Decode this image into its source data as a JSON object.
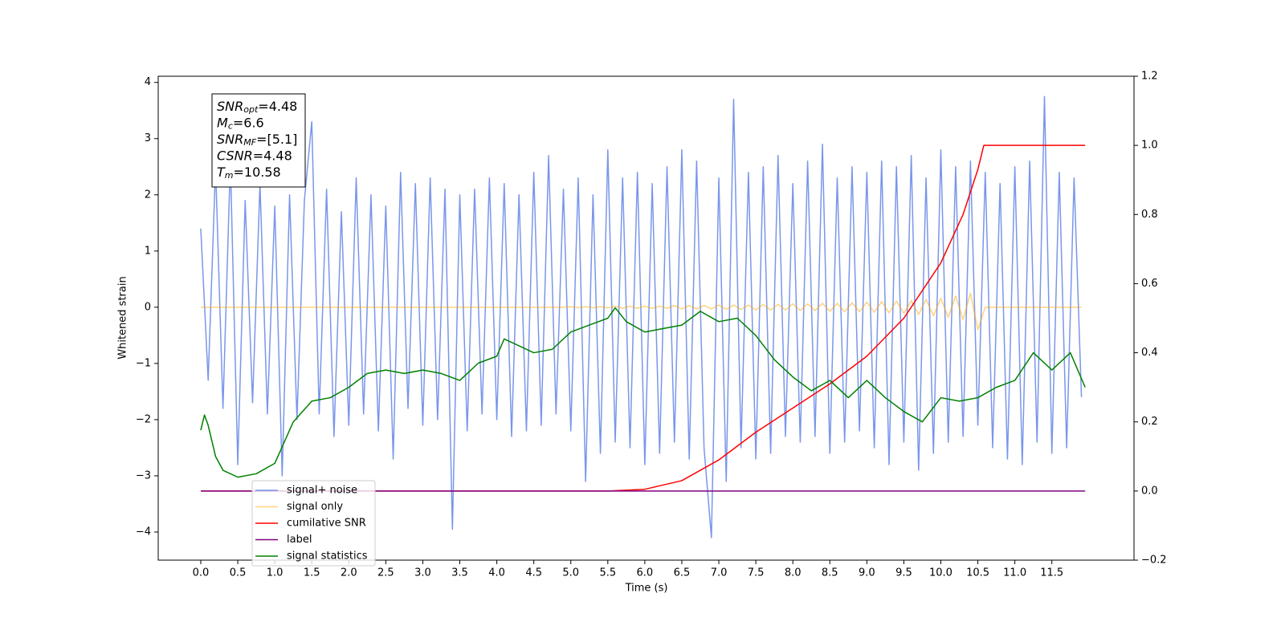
{
  "chart_data": {
    "type": "line",
    "xlabel": "Time (s)",
    "ylabel": "Whitened strain",
    "xlim": [
      -0.575,
      12.61
    ],
    "ylim": [
      -4.5,
      4.11
    ],
    "y2lim": [
      -0.2,
      1.2
    ],
    "xticks": [
      {
        "value": 0,
        "label": "0.0"
      },
      0.5,
      {
        "value": 1,
        "label": "1.0"
      },
      1.5,
      {
        "value": 2,
        "label": "2.0"
      },
      2.5,
      {
        "value": 3,
        "label": "3.0"
      },
      3.5,
      {
        "value": 4,
        "label": "4.0"
      },
      4.5,
      {
        "value": 5,
        "label": "5.0"
      },
      5.5,
      {
        "value": 6,
        "label": "6.0"
      },
      6.5,
      {
        "value": 7,
        "label": "7.0"
      },
      7.5,
      {
        "value": 8,
        "label": "8.0"
      },
      8.5,
      {
        "value": 9,
        "label": "9.0"
      },
      9.5,
      {
        "value": 10,
        "label": "10.0"
      },
      10.5,
      {
        "value": 11,
        "label": "11.0"
      },
      11.5
    ],
    "yticks": [
      {
        "value": -4,
        "label": "−4"
      },
      {
        "value": -3,
        "label": "−3"
      },
      {
        "value": -2,
        "label": "−2"
      },
      {
        "value": -1,
        "label": "−1"
      },
      0,
      1,
      2,
      3,
      4
    ],
    "y2ticks": [
      {
        "value": -0.2,
        "label": "−0.2"
      },
      {
        "value": 0,
        "label": "0.0"
      },
      0.2,
      0.4,
      0.6,
      0.8,
      {
        "value": 1,
        "label": "1.0"
      },
      1.2
    ],
    "annotation": [
      {
        "base": "SNR",
        "sub": "opt",
        "rest": "=4.48"
      },
      {
        "base": "M",
        "sub": "c",
        "rest": "=6.6"
      },
      {
        "base": "SNR",
        "sub": "MF",
        "rest": "=[5.1]"
      },
      {
        "base": "CSNR",
        "sub": null,
        "rest": "=4.48"
      },
      {
        "base": "T",
        "sub": "m",
        "rest": "=10.58"
      }
    ],
    "x": [
      0,
      0.1,
      0.2,
      0.3,
      0.4,
      0.5,
      0.6,
      0.7,
      0.8,
      0.9,
      1,
      1.1,
      1.2,
      1.3,
      1.4,
      1.5,
      1.6,
      1.7,
      1.8,
      1.9,
      2,
      2.1,
      2.2,
      2.3,
      2.4,
      2.5,
      2.6,
      2.7,
      2.8,
      2.9,
      3,
      3.1,
      3.2,
      3.3,
      3.4,
      3.5,
      3.6,
      3.7,
      3.8,
      3.9,
      4,
      4.1,
      4.2,
      4.3,
      4.4,
      4.5,
      4.6,
      4.7,
      4.8,
      4.9,
      5,
      5.1,
      5.2,
      5.3,
      5.4,
      5.5,
      5.6,
      5.7,
      5.8,
      5.9,
      6,
      6.1,
      6.2,
      6.3,
      6.4,
      6.5,
      6.6,
      6.7,
      6.8,
      6.9,
      7,
      7.1,
      7.2,
      7.3,
      7.4,
      7.5,
      7.6,
      7.7,
      7.8,
      7.9,
      8,
      8.1,
      8.2,
      8.3,
      8.4,
      8.5,
      8.6,
      8.7,
      8.8,
      8.9,
      9,
      9.1,
      9.2,
      9.3,
      9.4,
      9.5,
      9.6,
      9.7,
      9.8,
      9.9,
      10,
      10.1,
      10.2,
      10.3,
      10.4,
      10.5,
      10.6,
      10.7,
      10.8,
      10.9,
      11,
      11.1,
      11.2,
      11.3,
      11.4,
      11.5,
      11.6,
      11.7,
      11.8,
      11.9
    ],
    "series": [
      {
        "name": "signal+ noise",
        "color": "royalblue",
        "alpha": 0.7,
        "axis": "y",
        "values": [
          1.4,
          -1.3,
          2.5,
          -1.8,
          2.6,
          -2.8,
          1.9,
          -1.7,
          2.2,
          -1.9,
          1.8,
          -3.0,
          2.0,
          -2.0,
          1.9,
          3.3,
          -1.9,
          2.1,
          -2.3,
          1.7,
          -2.1,
          2.3,
          -1.9,
          2.0,
          -2.2,
          1.8,
          -2.7,
          2.4,
          -1.8,
          2.2,
          -2.1,
          2.3,
          -2.0,
          2.1,
          -3.95,
          2.0,
          -2.2,
          2.1,
          -1.9,
          2.3,
          -2.0,
          2.2,
          -2.3,
          2.0,
          -2.2,
          2.4,
          -2.1,
          2.7,
          -1.9,
          2.1,
          -2.2,
          2.3,
          -3.1,
          2.0,
          -2.6,
          2.8,
          -2.4,
          2.3,
          -2.5,
          2.4,
          -2.8,
          2.2,
          -2.6,
          2.5,
          -2.4,
          2.8,
          -2.7,
          2.6,
          -2.5,
          -4.1,
          2.3,
          -3.1,
          3.7,
          -2.5,
          2.4,
          -2.7,
          2.5,
          -2.6,
          2.7,
          -2.3,
          2.2,
          -2.4,
          2.6,
          -2.3,
          2.9,
          -2.6,
          2.3,
          -2.4,
          2.5,
          -2.2,
          2.4,
          -2.5,
          2.6,
          -2.8,
          2.5,
          -2.4,
          2.7,
          -2.9,
          2.3,
          -2.6,
          2.8,
          -2.4,
          2.5,
          -2.3,
          2.6,
          -2.1,
          2.4,
          -2.5,
          2.2,
          -2.7,
          2.5,
          -2.8,
          2.6,
          -2.4,
          3.75,
          -2.6,
          2.4,
          -2.5,
          2.3,
          -1.6
        ]
      },
      {
        "name": "signal only",
        "color": "orange",
        "alpha": 0.5,
        "axis": "y",
        "values": [
          0,
          0,
          0,
          0,
          0,
          0,
          0,
          0,
          0,
          0,
          0,
          0,
          0,
          0,
          0,
          0,
          0,
          0,
          0,
          0,
          0,
          0,
          0,
          0,
          0,
          0,
          0,
          0,
          0,
          0,
          0,
          0,
          0,
          0,
          0,
          0,
          0,
          0,
          0,
          0,
          0,
          0,
          0,
          0,
          0,
          0,
          0,
          0,
          0,
          0,
          0.01,
          -0.01,
          0.01,
          -0.01,
          0.01,
          -0.01,
          0.02,
          -0.02,
          0.02,
          -0.02,
          0.02,
          -0.02,
          0.02,
          -0.02,
          0.03,
          -0.03,
          0.03,
          -0.03,
          0.03,
          -0.03,
          0.04,
          -0.04,
          0.04,
          -0.04,
          0.04,
          -0.05,
          0.05,
          -0.05,
          0.05,
          -0.05,
          0.06,
          -0.06,
          0.06,
          -0.06,
          0.07,
          -0.07,
          0.07,
          -0.08,
          0.08,
          -0.08,
          0.09,
          -0.09,
          0.1,
          -0.1,
          0.11,
          -0.11,
          0.12,
          -0.13,
          0.14,
          -0.15,
          0.16,
          -0.18,
          0.2,
          -0.22,
          0.25,
          -0.4,
          0,
          0,
          0,
          0,
          0,
          0,
          0,
          0,
          0,
          0,
          0,
          0,
          0,
          0
        ]
      },
      {
        "name": "cumilative SNR",
        "color": "red",
        "alpha": 1,
        "axis": "y2",
        "x": [
          0,
          5.5,
          6.0,
          6.5,
          7.0,
          7.5,
          8.0,
          8.5,
          9.0,
          9.5,
          10.0,
          10.3,
          10.5,
          10.58,
          11.95
        ],
        "values": [
          0,
          0,
          0.005,
          0.03,
          0.09,
          0.17,
          0.24,
          0.31,
          0.39,
          0.5,
          0.66,
          0.8,
          0.93,
          1.0,
          1.0
        ]
      },
      {
        "name": "label",
        "color": "purple",
        "alpha": 1,
        "axis": "y2",
        "x": [
          0,
          11.95
        ],
        "values": [
          0,
          0
        ]
      },
      {
        "name": "signal statistics",
        "color": "green",
        "alpha": 1,
        "axis": "y2",
        "x": [
          0,
          0.05,
          0.1,
          0.2,
          0.3,
          0.5,
          0.75,
          1.0,
          1.25,
          1.5,
          1.75,
          2.0,
          2.25,
          2.5,
          2.75,
          3.0,
          3.25,
          3.5,
          3.75,
          4.0,
          4.1,
          4.5,
          4.75,
          5.0,
          5.25,
          5.5,
          5.6,
          5.75,
          6.0,
          6.25,
          6.5,
          6.75,
          7.0,
          7.25,
          7.5,
          7.75,
          8.0,
          8.25,
          8.5,
          8.75,
          9.0,
          9.25,
          9.5,
          9.75,
          10.0,
          10.25,
          10.5,
          10.75,
          11.0,
          11.25,
          11.5,
          11.75,
          11.95
        ],
        "values": [
          0.176,
          0.22,
          0.19,
          0.1,
          0.06,
          0.04,
          0.05,
          0.08,
          0.2,
          0.26,
          0.27,
          0.3,
          0.34,
          0.35,
          0.34,
          0.35,
          0.34,
          0.32,
          0.37,
          0.39,
          0.44,
          0.4,
          0.41,
          0.46,
          0.48,
          0.5,
          0.53,
          0.49,
          0.46,
          0.47,
          0.48,
          0.52,
          0.49,
          0.5,
          0.45,
          0.38,
          0.33,
          0.29,
          0.32,
          0.27,
          0.32,
          0.27,
          0.23,
          0.2,
          0.27,
          0.26,
          0.27,
          0.3,
          0.32,
          0.4,
          0.35,
          0.4,
          0.3
        ]
      }
    ]
  }
}
